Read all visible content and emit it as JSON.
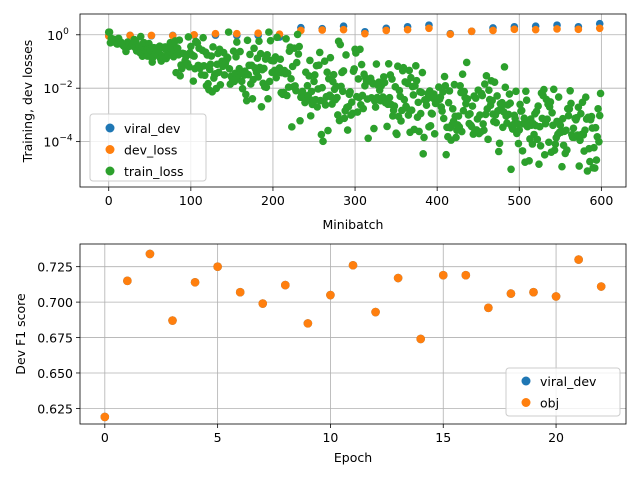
{
  "colors": {
    "c0": "#1f77b4",
    "c1": "#ff7f0e",
    "c2": "#2ca02c"
  },
  "chart_data": [
    {
      "type": "scatter",
      "xlabel": "Minibatch",
      "ylabel": "Training, dev losses",
      "yscale": "log",
      "xlim": [
        -35,
        630
      ],
      "ylim": [
        2e-06,
        6
      ],
      "xticks": [
        0,
        100,
        200,
        300,
        400,
        500,
        600
      ],
      "yticks": [
        {
          "value": 1,
          "label": "10",
          "exp": "0"
        },
        {
          "value": 0.01,
          "label": "10",
          "exp": "−2"
        },
        {
          "value": 0.0001,
          "label": "10",
          "exp": "−4"
        }
      ],
      "grid": true,
      "legend_position": "lower-left",
      "series": [
        {
          "name": "viral_dev",
          "color": "#1f77b4",
          "points": [
            [
              0,
              0.95
            ],
            [
              26,
              0.95
            ],
            [
              52,
              0.92
            ],
            [
              78,
              0.95
            ],
            [
              104,
              0.97
            ],
            [
              130,
              0.97
            ],
            [
              156,
              0.93
            ],
            [
              182,
              0.95
            ],
            [
              208,
              0.82
            ],
            [
              234,
              1.85
            ],
            [
              260,
              1.7
            ],
            [
              286,
              2.1
            ],
            [
              312,
              1.3
            ],
            [
              338,
              1.75
            ],
            [
              364,
              2.0
            ],
            [
              390,
              2.3
            ],
            [
              416,
              1.1
            ],
            [
              442,
              1.35
            ],
            [
              468,
              1.8
            ],
            [
              494,
              2.0
            ],
            [
              520,
              2.1
            ],
            [
              546,
              2.3
            ],
            [
              572,
              2.0
            ],
            [
              598,
              2.6
            ]
          ]
        },
        {
          "name": "dev_loss",
          "color": "#ff7f0e",
          "points": [
            [
              0,
              0.9
            ],
            [
              26,
              0.95
            ],
            [
              52,
              0.95
            ],
            [
              78,
              0.93
            ],
            [
              104,
              1.0
            ],
            [
              130,
              1.1
            ],
            [
              156,
              1.1
            ],
            [
              182,
              1.15
            ],
            [
              208,
              1.05
            ],
            [
              234,
              1.45
            ],
            [
              260,
              1.5
            ],
            [
              286,
              1.55
            ],
            [
              312,
              1.1
            ],
            [
              338,
              1.45
            ],
            [
              364,
              1.55
            ],
            [
              390,
              1.75
            ],
            [
              416,
              1.05
            ],
            [
              442,
              1.35
            ],
            [
              468,
              1.45
            ],
            [
              494,
              1.6
            ],
            [
              520,
              1.55
            ],
            [
              546,
              1.65
            ],
            [
              572,
              1.6
            ],
            [
              598,
              1.75
            ]
          ]
        },
        {
          "name": "train_loss",
          "color": "#2ca02c",
          "generated": true,
          "points": []
        }
      ]
    },
    {
      "type": "scatter",
      "xlabel": "Epoch",
      "ylabel": "Dev F1 score",
      "xlim": [
        -1.1,
        23.1
      ],
      "ylim": [
        0.614,
        0.741
      ],
      "xticks": [
        0,
        5,
        10,
        15,
        20
      ],
      "yticks": [
        0.625,
        0.65,
        0.675,
        0.7,
        0.725
      ],
      "ytick_labels": [
        "0.625",
        "0.650",
        "0.675",
        "0.700",
        "0.725"
      ],
      "grid": true,
      "legend_position": "lower-right",
      "series": [
        {
          "name": "viral_dev",
          "color": "#1f77b4",
          "x": [
            0,
            1,
            2,
            3,
            4,
            5,
            6,
            7,
            8,
            9,
            10,
            11,
            12,
            13,
            14,
            15,
            16,
            17,
            18,
            19,
            20,
            21,
            22
          ],
          "y": [
            0.619,
            0.715,
            0.734,
            0.687,
            0.714,
            0.725,
            0.707,
            0.699,
            0.712,
            0.685,
            0.705,
            0.726,
            0.693,
            0.717,
            0.674,
            0.719,
            0.719,
            0.696,
            0.706,
            0.707,
            0.704,
            0.73,
            0.711
          ]
        },
        {
          "name": "obj",
          "color": "#ff7f0e",
          "x": [
            0,
            1,
            2,
            3,
            4,
            5,
            6,
            7,
            8,
            9,
            10,
            11,
            12,
            13,
            14,
            15,
            16,
            17,
            18,
            19,
            20,
            21,
            22
          ],
          "y": [
            0.619,
            0.715,
            0.734,
            0.687,
            0.714,
            0.725,
            0.707,
            0.699,
            0.712,
            0.685,
            0.705,
            0.726,
            0.693,
            0.717,
            0.674,
            0.719,
            0.719,
            0.696,
            0.706,
            0.707,
            0.704,
            0.73,
            0.711
          ]
        }
      ]
    }
  ]
}
